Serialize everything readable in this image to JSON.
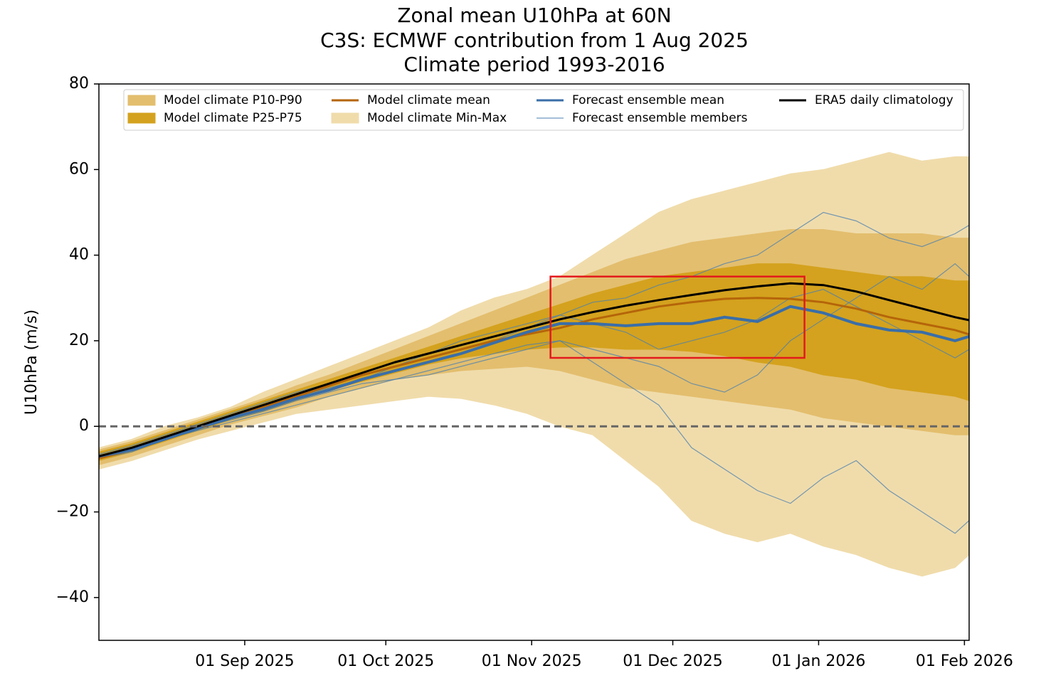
{
  "chart_data": {
    "type": "line",
    "title": [
      "Zonal mean U10hPa at 60N",
      "C3S: ECMWF contribution from 1 Aug 2025",
      "Climate period 1993-2016"
    ],
    "y_label": "U10hPa (m/s)",
    "x": [
      "2025-08-01",
      "2025-08-08",
      "2025-08-15",
      "2025-08-22",
      "2025-08-29",
      "2025-09-05",
      "2025-09-12",
      "2025-09-19",
      "2025-09-26",
      "2025-10-03",
      "2025-10-10",
      "2025-10-17",
      "2025-10-24",
      "2025-10-31",
      "2025-11-07",
      "2025-11-14",
      "2025-11-21",
      "2025-11-28",
      "2025-12-05",
      "2025-12-12",
      "2025-12-19",
      "2025-12-26",
      "2026-01-02",
      "2026-01-09",
      "2026-01-16",
      "2026-01-23",
      "2026-01-30",
      "2026-02-02"
    ],
    "xlim": [
      "2025-08-01",
      "2026-02-02"
    ],
    "xticks": [
      {
        "value": "2025-09-01",
        "label": "01 Sep 2025"
      },
      {
        "value": "2025-10-01",
        "label": "01 Oct 2025"
      },
      {
        "value": "2025-11-01",
        "label": "01 Nov 2025"
      },
      {
        "value": "2025-12-01",
        "label": "01 Dec 2025"
      },
      {
        "value": "2026-01-01",
        "label": "01 Jan 2026"
      },
      {
        "value": "2026-02-01",
        "label": "01 Feb 2026"
      }
    ],
    "ylim": [
      -50,
      80
    ],
    "yticks": [
      {
        "value": -40,
        "label": "−40"
      },
      {
        "value": -20,
        "label": "−20"
      },
      0,
      20,
      40,
      60,
      80
    ],
    "series": [
      {
        "name": "Model climate P10-P90",
        "kind": "band",
        "color": "#e3be6e",
        "lower": [
          -9,
          -7,
          -4.5,
          -2,
          0.5,
          2.5,
          4.5,
          7,
          9,
          11,
          12,
          13,
          13.5,
          14,
          13,
          11,
          9,
          8,
          7,
          6,
          5,
          4,
          2,
          1,
          0,
          -1,
          -2,
          -2
        ],
        "upper": [
          -5.5,
          -3.5,
          -1,
          1.5,
          4,
          6.5,
          9.5,
          12,
          15,
          18,
          21,
          24,
          27,
          30,
          33,
          36,
          39,
          41,
          43,
          44,
          45,
          46,
          46,
          45,
          45,
          45,
          44,
          44
        ]
      },
      {
        "name": "Model climate P25-P75",
        "kind": "band",
        "color": "#d4a21e",
        "lower": [
          -8,
          -6,
          -3.5,
          -1,
          1.5,
          3.5,
          6,
          8.5,
          10.5,
          12.5,
          14.5,
          16,
          17,
          18,
          18.5,
          18.5,
          18,
          18,
          17.5,
          16.5,
          15,
          14,
          12,
          11,
          9,
          8,
          7,
          6
        ],
        "upper": [
          -6,
          -4,
          -1.5,
          1,
          3.5,
          6,
          8.5,
          11,
          13.5,
          16,
          18.5,
          21,
          23.5,
          26,
          28.5,
          31,
          33,
          35,
          36,
          37,
          38,
          38,
          37,
          36,
          35,
          35,
          34,
          34
        ]
      },
      {
        "name": "Model climate mean",
        "kind": "line",
        "color": "#b5650a",
        "values": [
          -7.5,
          -5.5,
          -3,
          -0.5,
          2,
          4.5,
          7,
          9.5,
          12,
          14,
          16,
          18,
          20,
          21.5,
          23,
          25,
          26.5,
          28,
          29,
          29.8,
          30,
          29.8,
          29,
          27.5,
          25.5,
          24,
          22.5,
          21.5
        ]
      },
      {
        "name": "Model climate Min-Max",
        "kind": "band",
        "color": "#f0dcab",
        "lower": [
          -10,
          -8,
          -5.5,
          -3,
          -1,
          1,
          3,
          4,
          5,
          6,
          7,
          6.5,
          5,
          3,
          0,
          -2,
          -8,
          -14,
          -22,
          -25,
          -27,
          -25,
          -28,
          -30,
          -33,
          -35,
          -33,
          -30
        ],
        "upper": [
          -5,
          -3,
          0,
          2,
          4.5,
          8,
          11,
          14,
          17,
          20,
          23,
          27,
          30,
          32,
          35,
          40,
          45,
          50,
          53,
          55,
          57,
          59,
          60,
          62,
          64,
          62,
          63,
          63
        ]
      },
      {
        "name": "Forecast ensemble mean",
        "kind": "line",
        "color": "#3a6ea8",
        "values": [
          -7,
          -5.5,
          -3,
          -0.5,
          2,
          4,
          6.5,
          8.5,
          11,
          13,
          15,
          17,
          19.5,
          22,
          24,
          24,
          23.5,
          24,
          24,
          25.5,
          24.5,
          28,
          26.5,
          24,
          22.5,
          22,
          20,
          21
        ]
      },
      {
        "name": "Forecast ensemble members",
        "kind": "members",
        "color": "#4a7fb2",
        "members": [
          [
            -7,
            -5,
            -2.5,
            0,
            2.5,
            5,
            7,
            9,
            11,
            14,
            16,
            18,
            20,
            23,
            26,
            29,
            30,
            33,
            35,
            38,
            40,
            45,
            50,
            48,
            44,
            42,
            45,
            47
          ],
          [
            -7.5,
            -6,
            -3,
            -0.5,
            1.5,
            3.5,
            6,
            8,
            10,
            11,
            12,
            14,
            16,
            18,
            20,
            15,
            10,
            5,
            -5,
            -10,
            -15,
            -18,
            -12,
            -8,
            -15,
            -20,
            -25,
            -22
          ],
          [
            -6.5,
            -4.5,
            -2,
            0.5,
            3,
            5.5,
            8,
            10,
            12,
            14,
            17,
            20,
            22,
            24,
            26,
            24,
            22,
            18,
            20,
            22,
            25,
            30,
            32,
            28,
            24,
            20,
            16,
            18
          ],
          [
            -7,
            -5.5,
            -3,
            -1,
            1,
            3,
            5,
            7,
            9,
            11,
            13,
            15,
            17,
            19,
            20,
            18,
            16,
            14,
            10,
            8,
            12,
            20,
            25,
            30,
            35,
            32,
            38,
            35
          ]
        ]
      },
      {
        "name": "ERA5 daily climatology",
        "kind": "line",
        "color": "#000000",
        "values": [
          -7,
          -5,
          -2.5,
          0,
          2.5,
          5,
          7.5,
          10,
          12.5,
          15,
          17,
          19,
          21,
          23,
          25,
          26.7,
          28.2,
          29.5,
          30.7,
          31.8,
          32.7,
          33.4,
          33,
          31.5,
          29.5,
          27.5,
          25.5,
          24.8
        ]
      }
    ],
    "reference_line": {
      "y": 0,
      "color": "#666666"
    },
    "highlight_box": {
      "xlim": [
        "2025-11-05",
        "2025-12-29"
      ],
      "ylim": [
        16,
        35
      ],
      "color": "#e31a1c"
    }
  }
}
